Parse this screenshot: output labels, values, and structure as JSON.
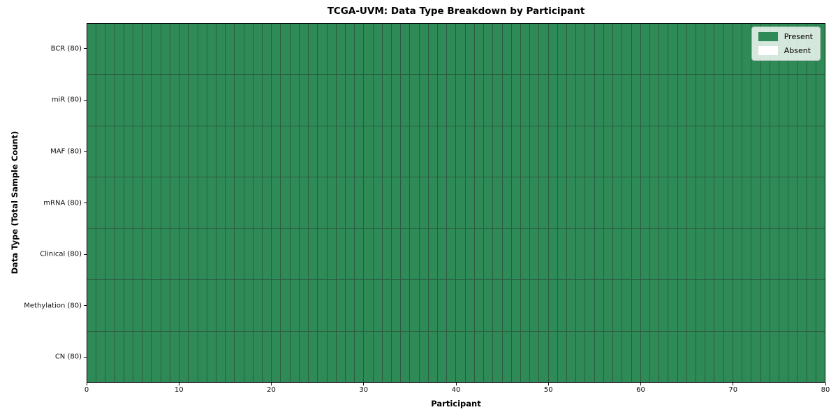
{
  "chart_data": {
    "type": "heatmap",
    "title": "TCGA-UVM: Data Type Breakdown by Participant",
    "xlabel": "Participant",
    "ylabel": "Data Type (Total Sample Count)",
    "x_range": [
      0,
      80
    ],
    "x_ticks": [
      0,
      10,
      20,
      30,
      40,
      50,
      60,
      70,
      80
    ],
    "n_participants": 80,
    "rows": [
      {
        "label": "BCR (80)",
        "data_type": "BCR",
        "total_samples": 80,
        "present_count": 80
      },
      {
        "label": "miR (80)",
        "data_type": "miR",
        "total_samples": 80,
        "present_count": 80
      },
      {
        "label": "MAF (80)",
        "data_type": "MAF",
        "total_samples": 80,
        "present_count": 80
      },
      {
        "label": "mRNA (80)",
        "data_type": "mRNA",
        "total_samples": 80,
        "present_count": 80
      },
      {
        "label": "Clinical (80)",
        "data_type": "Clinical",
        "total_samples": 80,
        "present_count": 80
      },
      {
        "label": "Methylation (80)",
        "data_type": "Methylation",
        "total_samples": 80,
        "present_count": 80
      },
      {
        "label": "CN (80)",
        "data_type": "CN",
        "total_samples": 80,
        "present_count": 80
      }
    ],
    "legend": {
      "position": "upper right",
      "entries": [
        {
          "label": "Present",
          "color": "#2e8b57"
        },
        {
          "label": "Absent",
          "color": "#ffffff"
        }
      ]
    },
    "colors": {
      "present": "#2e8b57",
      "absent": "#ffffff",
      "cell_border": "#2d5a41",
      "spine": "#000000"
    },
    "grid": false
  }
}
